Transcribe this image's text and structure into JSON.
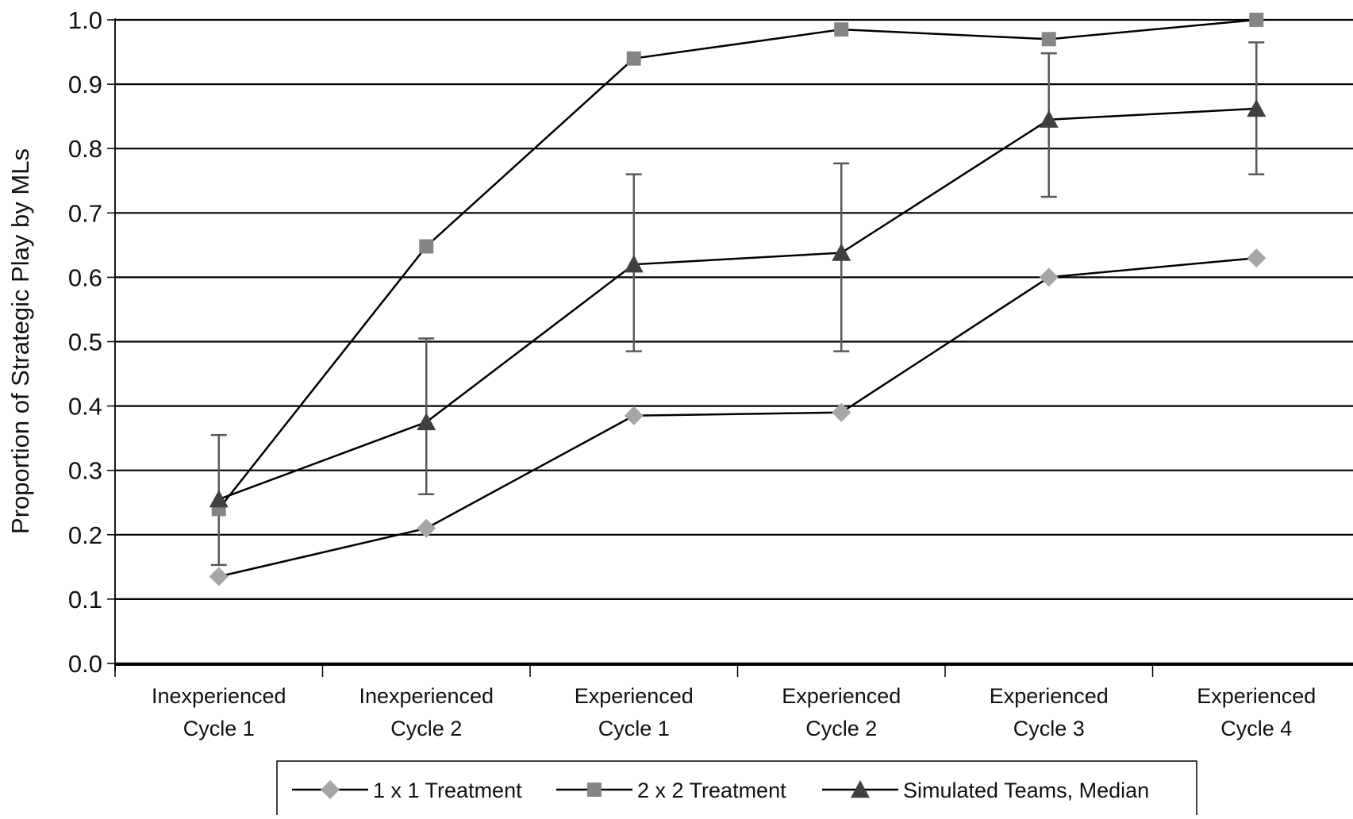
{
  "chart_data": {
    "type": "line",
    "title": "",
    "xlabel": "",
    "ylabel": "Proportion of Strategic Play by MLs",
    "ylim": [
      0,
      1
    ],
    "y_ticks": [
      "0.0",
      "0.1",
      "0.2",
      "0.3",
      "0.4",
      "0.5",
      "0.6",
      "0.7",
      "0.8",
      "0.9",
      "1.0"
    ],
    "grid": true,
    "legend_position": "bottom",
    "categories": [
      [
        "Inexperienced",
        "Cycle 1"
      ],
      [
        "Inexperienced",
        "Cycle 2"
      ],
      [
        "Experienced",
        "Cycle 1"
      ],
      [
        "Experienced",
        "Cycle 2"
      ],
      [
        "Experienced",
        "Cycle 3"
      ],
      [
        "Experienced",
        "Cycle 4"
      ]
    ],
    "series": [
      {
        "name": "1 x 1 Treatment",
        "marker": "diamond",
        "marker_color": "#a6a6a6",
        "values": [
          0.135,
          0.21,
          0.385,
          0.39,
          0.6,
          0.63
        ]
      },
      {
        "name": "2 x 2 Treatment",
        "marker": "square",
        "marker_color": "#858585",
        "values": [
          0.24,
          0.648,
          0.94,
          0.985,
          0.97,
          1.0
        ]
      },
      {
        "name": "Simulated Teams, Median",
        "marker": "triangle",
        "marker_color": "#404040",
        "values": [
          0.255,
          0.375,
          0.62,
          0.638,
          0.845,
          0.862
        ],
        "error_low": [
          0.153,
          0.263,
          0.485,
          0.485,
          0.725,
          0.76
        ],
        "error_high": [
          0.355,
          0.505,
          0.76,
          0.777,
          0.948,
          0.965
        ]
      }
    ],
    "colors": {
      "line": "#000000",
      "grid": "#000000",
      "errorbar": "#595959"
    }
  }
}
